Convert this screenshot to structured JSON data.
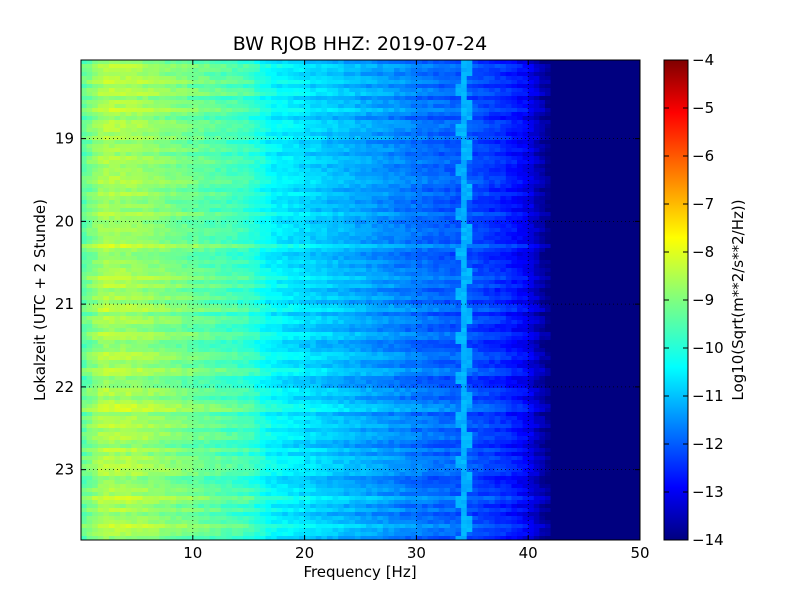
{
  "chart_data": {
    "type": "heatmap",
    "title": "BW RJOB HHZ: 2019-07-24",
    "xlabel": "Frequency [Hz]",
    "ylabel": "Lokalzeit (UTC + 2 Stunde)",
    "colorbar_label": "Log10(Sqrt(m**2/s**2/Hz))",
    "colormap": "jet",
    "xlim": [
      0,
      50
    ],
    "ylim": [
      18.05,
      23.85
    ],
    "y_inverted": true,
    "grid": true,
    "x_ticks": [
      10,
      20,
      30,
      40,
      50
    ],
    "x_tick_labels": [
      "10",
      "20",
      "30",
      "40",
      "50"
    ],
    "y_ticks": [
      19,
      20,
      21,
      22,
      23
    ],
    "y_tick_labels": [
      "19",
      "20",
      "21",
      "22",
      "23"
    ],
    "color_range": [
      -14,
      -4
    ],
    "colorbar_ticks": [
      -4,
      -5,
      -6,
      -7,
      -8,
      -9,
      -10,
      -11,
      -12,
      -13,
      -14
    ],
    "colorbar_tick_labels": [
      "−4",
      "−5",
      "−6",
      "−7",
      "−8",
      "−9",
      "−10",
      "−11",
      "−12",
      "−13",
      "−14"
    ],
    "mean_spectrum": {
      "frequency_hz": [
        0,
        2,
        5,
        10,
        15,
        17,
        20,
        25,
        30,
        35,
        38,
        40,
        41,
        42,
        45,
        50
      ],
      "log10_psd": [
        -9.4,
        -8.6,
        -8.7,
        -9.2,
        -9.7,
        -10.3,
        -10.6,
        -11.1,
        -11.6,
        -12.0,
        -12.4,
        -12.9,
        -13.5,
        -14.0,
        -14.0,
        -14.0
      ]
    },
    "line_feature": {
      "description_value_hz": 34.3,
      "log10_psd": -11.0
    }
  },
  "colors": {
    "colormap_stops": [
      "#00007f",
      "#0000ff",
      "#007fff",
      "#00ffff",
      "#7fff7f",
      "#ffff00",
      "#ff7f00",
      "#ff0000",
      "#7f0000"
    ]
  }
}
